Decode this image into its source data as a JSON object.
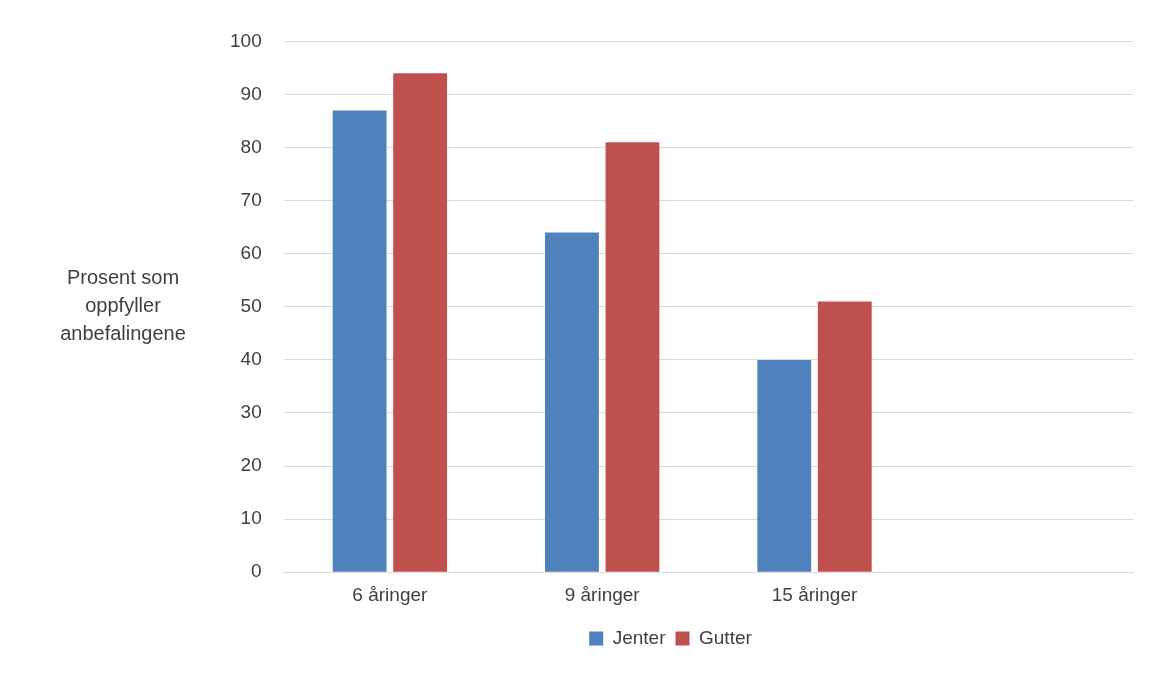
{
  "chart_data": {
    "type": "bar",
    "ylabel": "Prosent som oppfyller anbefalingene",
    "categories": [
      "6 åringer",
      "9 åringer",
      "15 åringer",
      null
    ],
    "series": [
      {
        "name": "Jenter",
        "color": "#4f81bd",
        "values": [
          87,
          64,
          40,
          null
        ]
      },
      {
        "name": "Gutter",
        "color": "#c0504d",
        "values": [
          94,
          81,
          51,
          null
        ]
      }
    ],
    "ylim": [
      0,
      100
    ],
    "yticks": [
      0,
      10,
      20,
      30,
      40,
      50,
      60,
      70,
      80,
      90,
      100
    ],
    "grid": "y",
    "legend": "bottom"
  }
}
